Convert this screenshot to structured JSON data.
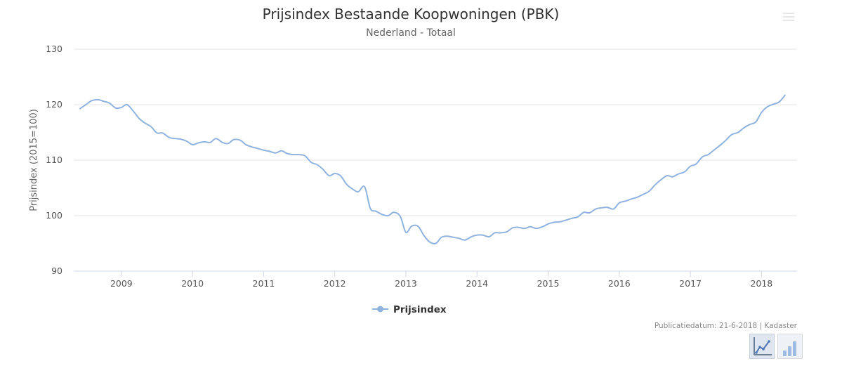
{
  "chart": {
    "title": "Prijsindex Bestaande Koopwoningen (PBK)",
    "subtitle": "Nederland - Totaal",
    "credits": "Publicatiedatum: 21-6-2018 | Kadaster",
    "menu_icon": "hamburger-menu-icon",
    "chart_type_buttons": [
      {
        "name": "line-chart-icon",
        "active": true
      },
      {
        "name": "bar-chart-icon",
        "active": false
      }
    ]
  },
  "chart_data": {
    "type": "line",
    "title": "Prijsindex Bestaande Koopwoningen (PBK)",
    "subtitle": "Nederland - Totaal",
    "xlabel": "",
    "ylabel": "Prijsindex (2015=100)",
    "x_tick_labels": [
      "2009",
      "2010",
      "2011",
      "2012",
      "2013",
      "2014",
      "2015",
      "2016",
      "2017",
      "2018"
    ],
    "y_ticks": [
      90,
      100,
      110,
      120,
      130
    ],
    "ylim": [
      90,
      130
    ],
    "xlim": [
      2008.33,
      2018.5
    ],
    "grid": true,
    "legend_position": "bottom-center",
    "series": [
      {
        "name": "Prijsindex",
        "color": "#8fb3de",
        "points": [
          [
            2008.42,
            119.3
          ],
          [
            2008.5,
            120.0
          ],
          [
            2008.58,
            120.7
          ],
          [
            2008.67,
            120.9
          ],
          [
            2008.75,
            120.6
          ],
          [
            2008.83,
            120.3
          ],
          [
            2008.92,
            119.4
          ],
          [
            2009.0,
            119.5
          ],
          [
            2009.08,
            120.0
          ],
          [
            2009.17,
            118.8
          ],
          [
            2009.25,
            117.5
          ],
          [
            2009.33,
            116.7
          ],
          [
            2009.42,
            116.0
          ],
          [
            2009.5,
            114.9
          ],
          [
            2009.58,
            114.9
          ],
          [
            2009.67,
            114.1
          ],
          [
            2009.75,
            113.9
          ],
          [
            2009.83,
            113.8
          ],
          [
            2009.92,
            113.4
          ],
          [
            2010.0,
            112.8
          ],
          [
            2010.08,
            113.1
          ],
          [
            2010.17,
            113.3
          ],
          [
            2010.25,
            113.2
          ],
          [
            2010.33,
            113.9
          ],
          [
            2010.42,
            113.2
          ],
          [
            2010.5,
            113.0
          ],
          [
            2010.58,
            113.7
          ],
          [
            2010.67,
            113.6
          ],
          [
            2010.75,
            112.8
          ],
          [
            2010.83,
            112.4
          ],
          [
            2010.92,
            112.1
          ],
          [
            2011.0,
            111.8
          ],
          [
            2011.08,
            111.6
          ],
          [
            2011.17,
            111.3
          ],
          [
            2011.25,
            111.7
          ],
          [
            2011.33,
            111.2
          ],
          [
            2011.42,
            111.0
          ],
          [
            2011.5,
            111.0
          ],
          [
            2011.58,
            110.8
          ],
          [
            2011.67,
            109.6
          ],
          [
            2011.75,
            109.2
          ],
          [
            2011.83,
            108.4
          ],
          [
            2011.92,
            107.2
          ],
          [
            2012.0,
            107.6
          ],
          [
            2012.08,
            107.2
          ],
          [
            2012.17,
            105.6
          ],
          [
            2012.25,
            104.8
          ],
          [
            2012.33,
            104.3
          ],
          [
            2012.42,
            105.2
          ],
          [
            2012.5,
            101.3
          ],
          [
            2012.58,
            100.8
          ],
          [
            2012.67,
            100.2
          ],
          [
            2012.75,
            100.0
          ],
          [
            2012.83,
            100.6
          ],
          [
            2012.92,
            99.9
          ],
          [
            2013.0,
            97.0
          ],
          [
            2013.08,
            98.1
          ],
          [
            2013.17,
            98.1
          ],
          [
            2013.25,
            96.5
          ],
          [
            2013.33,
            95.3
          ],
          [
            2013.42,
            95.0
          ],
          [
            2013.5,
            96.1
          ],
          [
            2013.58,
            96.3
          ],
          [
            2013.67,
            96.1
          ],
          [
            2013.75,
            95.9
          ],
          [
            2013.83,
            95.6
          ],
          [
            2013.92,
            96.2
          ],
          [
            2014.0,
            96.5
          ],
          [
            2014.08,
            96.5
          ],
          [
            2014.17,
            96.2
          ],
          [
            2014.25,
            96.9
          ],
          [
            2014.33,
            96.9
          ],
          [
            2014.42,
            97.1
          ],
          [
            2014.5,
            97.8
          ],
          [
            2014.58,
            97.9
          ],
          [
            2014.67,
            97.7
          ],
          [
            2014.75,
            98.0
          ],
          [
            2014.83,
            97.7
          ],
          [
            2014.92,
            98.0
          ],
          [
            2015.0,
            98.5
          ],
          [
            2015.08,
            98.8
          ],
          [
            2015.17,
            98.9
          ],
          [
            2015.25,
            99.2
          ],
          [
            2015.33,
            99.5
          ],
          [
            2015.42,
            99.8
          ],
          [
            2015.5,
            100.6
          ],
          [
            2015.58,
            100.5
          ],
          [
            2015.67,
            101.2
          ],
          [
            2015.75,
            101.4
          ],
          [
            2015.83,
            101.5
          ],
          [
            2015.92,
            101.2
          ],
          [
            2016.0,
            102.3
          ],
          [
            2016.08,
            102.6
          ],
          [
            2016.17,
            103.0
          ],
          [
            2016.25,
            103.3
          ],
          [
            2016.33,
            103.8
          ],
          [
            2016.42,
            104.4
          ],
          [
            2016.5,
            105.5
          ],
          [
            2016.58,
            106.4
          ],
          [
            2016.67,
            107.2
          ],
          [
            2016.75,
            107.0
          ],
          [
            2016.83,
            107.5
          ],
          [
            2016.92,
            107.9
          ],
          [
            2017.0,
            108.9
          ],
          [
            2017.08,
            109.3
          ],
          [
            2017.17,
            110.6
          ],
          [
            2017.25,
            111.0
          ],
          [
            2017.33,
            111.8
          ],
          [
            2017.42,
            112.7
          ],
          [
            2017.5,
            113.6
          ],
          [
            2017.58,
            114.6
          ],
          [
            2017.67,
            115.0
          ],
          [
            2017.75,
            115.8
          ],
          [
            2017.83,
            116.4
          ],
          [
            2017.92,
            116.9
          ],
          [
            2018.0,
            118.6
          ],
          [
            2018.08,
            119.6
          ],
          [
            2018.17,
            120.1
          ],
          [
            2018.25,
            120.5
          ],
          [
            2018.33,
            121.7
          ]
        ]
      }
    ]
  }
}
